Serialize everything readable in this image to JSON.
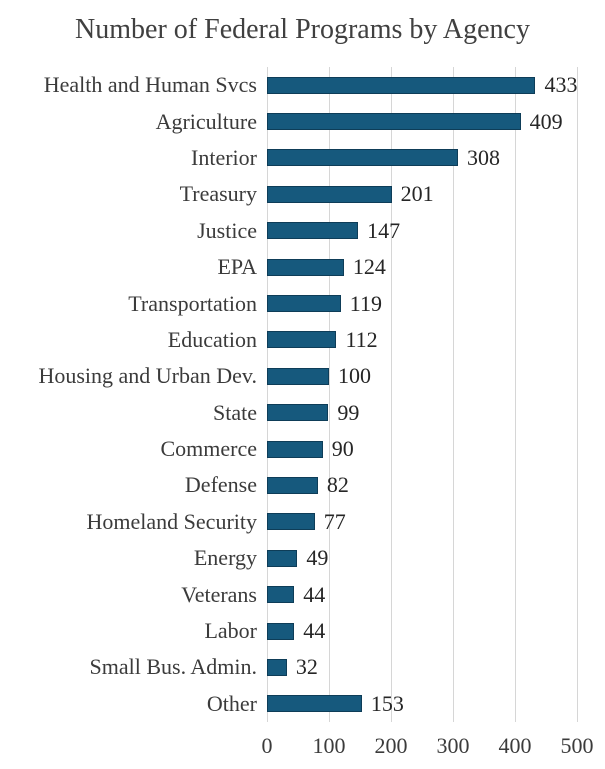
{
  "chart_data": {
    "type": "bar",
    "orientation": "horizontal",
    "title": "Number of Federal Programs by Agency",
    "categories": [
      "Health and Human Svcs",
      "Agriculture",
      "Interior",
      "Treasury",
      "Justice",
      "EPA",
      "Transportation",
      "Education",
      "Housing and Urban Dev.",
      "State",
      "Commerce",
      "Defense",
      "Homeland Security",
      "Energy",
      "Veterans",
      "Labor",
      "Small Bus. Admin.",
      "Other"
    ],
    "values": [
      433,
      409,
      308,
      201,
      147,
      124,
      119,
      112,
      100,
      99,
      90,
      82,
      77,
      49,
      44,
      44,
      32,
      153
    ],
    "data_labels_shown": true,
    "xlabel": "",
    "ylabel": "",
    "xlim": [
      0,
      500
    ],
    "x_ticks": [
      0,
      100,
      200,
      300,
      400,
      500
    ],
    "grid": true,
    "legend": "none"
  },
  "colors": {
    "bar_fill": "#16597d",
    "bar_border": "#0e3d58",
    "gridline": "#d6d6d6",
    "title_text": "#404040",
    "category_text": "#3b3b3b",
    "value_text": "#262626",
    "tick_text": "#3b3b3b",
    "background": "#ffffff"
  }
}
